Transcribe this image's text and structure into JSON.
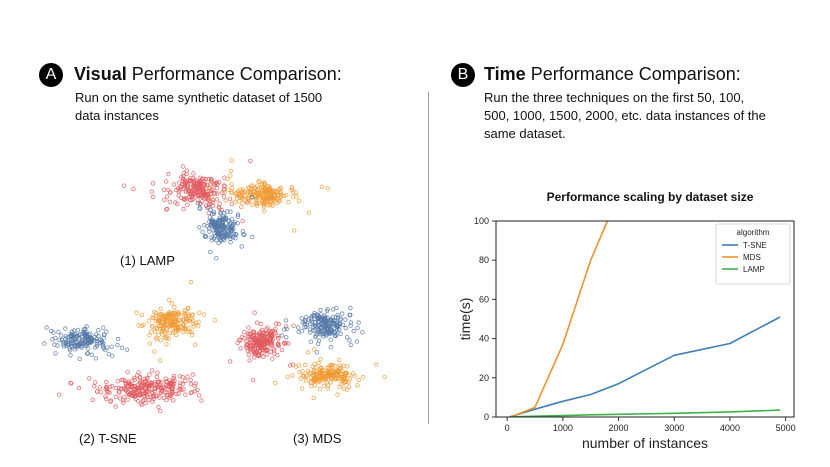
{
  "panel_a": {
    "badge": "A",
    "title_bold": "Visual",
    "title_rest": " Performance Comparison:",
    "desc_line1": "Run on the same synthetic dataset of 1500",
    "desc_line2": "data instances",
    "labels": {
      "lamp": "(1) LAMP",
      "tsne": "(2) T-SNE",
      "mds": "(3) MDS"
    }
  },
  "panel_b": {
    "badge": "B",
    "title_bold": "Time",
    "title_rest": " Performance Comparison:",
    "desc_line1": "Run the three techniques on the first  50, 100,",
    "desc_line2": "500, 1000, 1500, 2000, etc. data instances of the",
    "desc_line3": "same dataset."
  },
  "colors": {
    "red": "#e05a5f",
    "blue": "#5578a8",
    "orange": "#f09a32",
    "tsne_line": "#3f7fb5",
    "mds_line": "#f0922c",
    "lamp_line": "#3fb34a"
  },
  "chart_data": {
    "type": "line",
    "title": "Performance scaling by dataset size",
    "xlabel": "number of instances",
    "ylabel": "time(s)",
    "xlim": [
      -200,
      5150
    ],
    "ylim": [
      0,
      100
    ],
    "xticks": [
      0,
      1000,
      2000,
      3000,
      4000,
      5000
    ],
    "yticks": [
      0,
      20,
      40,
      60,
      80,
      100
    ],
    "legend_title": "algorithm",
    "legend_position": "top-right",
    "series": [
      {
        "name": "T-SNE",
        "x": [
          50,
          100,
          500,
          1000,
          1500,
          2000,
          3000,
          4000,
          4900
        ],
        "y": [
          0.2,
          0.5,
          4,
          8,
          11.5,
          17,
          31.5,
          37.5,
          51
        ]
      },
      {
        "name": "MDS",
        "x": [
          50,
          100,
          500,
          1000,
          1500,
          1800
        ],
        "y": [
          0.1,
          0.3,
          5,
          37,
          80,
          100
        ]
      },
      {
        "name": "LAMP",
        "x": [
          50,
          100,
          500,
          1000,
          1500,
          2000,
          3000,
          4000,
          4900
        ],
        "y": [
          0.05,
          0.1,
          0.4,
          0.7,
          1.1,
          1.4,
          1.9,
          2.6,
          3.5
        ]
      }
    ]
  }
}
